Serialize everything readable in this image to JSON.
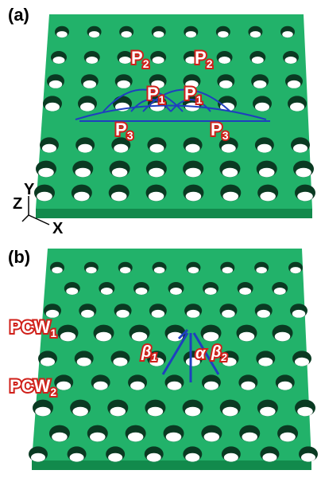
{
  "panels": [
    {
      "label": "(a)",
      "tags": [
        {
          "text": "P",
          "sub": "2"
        },
        {
          "text": "P",
          "sub": "2"
        },
        {
          "text": "P",
          "sub": "1"
        },
        {
          "text": "P",
          "sub": "1"
        },
        {
          "text": "P",
          "sub": "3"
        },
        {
          "text": "P",
          "sub": "3"
        }
      ],
      "axes": {
        "z": "Z",
        "y": "Y",
        "x": "X"
      }
    },
    {
      "label": "(b)",
      "tags": [
        {
          "text": "PCW",
          "sub": "1"
        },
        {
          "text": "PCW",
          "sub": "2"
        }
      ],
      "greek": [
        {
          "text": "β",
          "sub": "1"
        },
        {
          "text": "α",
          "sub": ""
        },
        {
          "text": "β",
          "sub": "2"
        }
      ]
    }
  ]
}
